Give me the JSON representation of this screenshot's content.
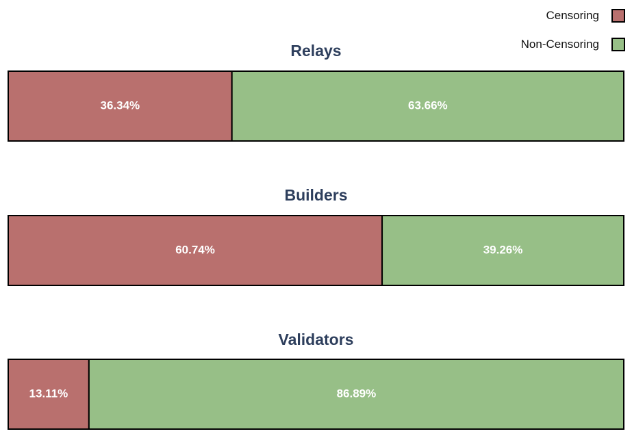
{
  "legend": {
    "position": "top-right",
    "items": [
      {
        "label": "Censoring",
        "color": "#b9706e"
      },
      {
        "label": "Non-Censoring",
        "color": "#97bf87"
      }
    ]
  },
  "chart_data": {
    "type": "bar",
    "orientation": "horizontal-stacked-100",
    "series_names": [
      "Censoring",
      "Non-Censoring"
    ],
    "colors": [
      "#b9706e",
      "#97bf87"
    ],
    "title_color": "#2d3e5c",
    "bars": [
      {
        "title": "Relays",
        "values": [
          36.34,
          63.66
        ],
        "labels": [
          "36.34%",
          "63.66%"
        ]
      },
      {
        "title": "Builders",
        "values": [
          60.74,
          39.26
        ],
        "labels": [
          "60.74%",
          "39.26%"
        ]
      },
      {
        "title": "Validators",
        "values": [
          13.11,
          86.89
        ],
        "labels": [
          "13.11%",
          "86.89%"
        ]
      }
    ]
  }
}
